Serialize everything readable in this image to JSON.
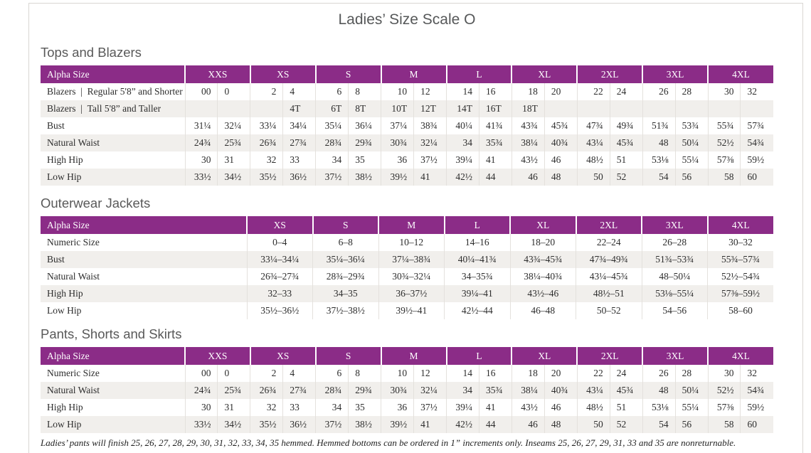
{
  "page": {
    "title": "Ladies’ Size Scale O",
    "footnote": "Ladies’ pants will finish 25, 26, 27, 28, 29, 30, 31, 32, 33, 34, 35 hemmed. Hemmed bottoms can be ordered in 1” increments only. Inseams 25, 26, 27, 29, 31, 33 and 35 are nonreturnable."
  },
  "colors": {
    "header_purple": "#8b2c87",
    "row_stripe": "#f1efec",
    "page_border": "#d9d6d3"
  },
  "tables": [
    {
      "section_title": "Tops and Blazers",
      "corner_label": "Alpha Size",
      "layout": "split",
      "columns": [
        "XXS",
        "XS",
        "S",
        "M",
        "L",
        "XL",
        "2XL",
        "3XL",
        "4XL"
      ],
      "rows": [
        {
          "label": "Blazers | Regular 5'8” and Shorter",
          "cells": [
            [
              "00",
              "0"
            ],
            [
              "2",
              "4"
            ],
            [
              "6",
              "8"
            ],
            [
              "10",
              "12"
            ],
            [
              "14",
              "16"
            ],
            [
              "18",
              "20"
            ],
            [
              "22",
              "24"
            ],
            [
              "26",
              "28"
            ],
            [
              "30",
              "32"
            ]
          ]
        },
        {
          "label": "Blazers | Tall 5'8” and Taller",
          "cells": [
            [
              "",
              ""
            ],
            [
              "",
              "4T"
            ],
            [
              "6T",
              "8T"
            ],
            [
              "10T",
              "12T"
            ],
            [
              "14T",
              "16T"
            ],
            [
              "18T",
              ""
            ],
            [
              "",
              ""
            ],
            [
              "",
              ""
            ],
            [
              "",
              ""
            ]
          ]
        },
        {
          "label": "Bust",
          "cells": [
            [
              "31¼",
              "32¼"
            ],
            [
              "33¼",
              "34¼"
            ],
            [
              "35¼",
              "36¼"
            ],
            [
              "37¼",
              "38¾"
            ],
            [
              "40¼",
              "41¾"
            ],
            [
              "43¾",
              "45¾"
            ],
            [
              "47¾",
              "49¾"
            ],
            [
              "51¾",
              "53¾"
            ],
            [
              "55¾",
              "57¾"
            ]
          ]
        },
        {
          "label": "Natural Waist",
          "cells": [
            [
              "24¾",
              "25¾"
            ],
            [
              "26¾",
              "27¾"
            ],
            [
              "28¾",
              "29¾"
            ],
            [
              "30¾",
              "32¼"
            ],
            [
              "34",
              "35¾"
            ],
            [
              "38¼",
              "40¾"
            ],
            [
              "43¼",
              "45¾"
            ],
            [
              "48",
              "50¼"
            ],
            [
              "52½",
              "54¾"
            ]
          ]
        },
        {
          "label": "High Hip",
          "cells": [
            [
              "30",
              "31"
            ],
            [
              "32",
              "33"
            ],
            [
              "34",
              "35"
            ],
            [
              "36",
              "37½"
            ],
            [
              "39¼",
              "41"
            ],
            [
              "43½",
              "46"
            ],
            [
              "48½",
              "51"
            ],
            [
              "53⅛",
              "55¼"
            ],
            [
              "57⅜",
              "59½"
            ]
          ]
        },
        {
          "label": "Low Hip",
          "cells": [
            [
              "33½",
              "34½"
            ],
            [
              "35½",
              "36½"
            ],
            [
              "37½",
              "38½"
            ],
            [
              "39½",
              "41"
            ],
            [
              "42½",
              "44"
            ],
            [
              "46",
              "48"
            ],
            [
              "50",
              "52"
            ],
            [
              "54",
              "56"
            ],
            [
              "58",
              "60"
            ]
          ]
        }
      ]
    },
    {
      "section_title": "Outerwear Jackets",
      "corner_label": "Alpha Size",
      "layout": "single",
      "columns": [
        "XS",
        "S",
        "M",
        "L",
        "XL",
        "2XL",
        "3XL",
        "4XL"
      ],
      "rows": [
        {
          "label": "Numeric Size",
          "cells": [
            "0–4",
            "6–8",
            "10–12",
            "14–16",
            "18–20",
            "22–24",
            "26–28",
            "30–32"
          ]
        },
        {
          "label": "Bust",
          "cells": [
            "33¼–34¼",
            "35¼–36¼",
            "37¼–38¾",
            "40¼–41¾",
            "43¾–45¾",
            "47¾–49¾",
            "51¾–53¾",
            "55¾–57¾"
          ]
        },
        {
          "label": "Natural Waist",
          "cells": [
            "26¾–27¾",
            "28¾–29¾",
            "30¾–32¼",
            "34–35¾",
            "38¼–40¾",
            "43¼–45¾",
            "48–50¼",
            "52½–54¾"
          ]
        },
        {
          "label": "High Hip",
          "cells": [
            "32–33",
            "34–35",
            "36–37½",
            "39¼–41",
            "43½–46",
            "48½–51",
            "53⅛–55¼",
            "57⅜–59½"
          ]
        },
        {
          "label": "Low Hip",
          "cells": [
            "35½–36½",
            "37½–38½",
            "39½–41",
            "42½–44",
            "46–48",
            "50–52",
            "54–56",
            "58–60"
          ]
        }
      ]
    },
    {
      "section_title": "Pants, Shorts and Skirts",
      "corner_label": "Alpha Size",
      "layout": "split",
      "columns": [
        "XXS",
        "XS",
        "S",
        "M",
        "L",
        "XL",
        "2XL",
        "3XL",
        "4XL"
      ],
      "rows": [
        {
          "label": "Numeric Size",
          "cells": [
            [
              "00",
              "0"
            ],
            [
              "2",
              "4"
            ],
            [
              "6",
              "8"
            ],
            [
              "10",
              "12"
            ],
            [
              "14",
              "16"
            ],
            [
              "18",
              "20"
            ],
            [
              "22",
              "24"
            ],
            [
              "26",
              "28"
            ],
            [
              "30",
              "32"
            ]
          ]
        },
        {
          "label": "Natural Waist",
          "cells": [
            [
              "24¾",
              "25¾"
            ],
            [
              "26¾",
              "27¾"
            ],
            [
              "28¾",
              "29¾"
            ],
            [
              "30¾",
              "32¼"
            ],
            [
              "34",
              "35¾"
            ],
            [
              "38¼",
              "40¾"
            ],
            [
              "43¼",
              "45¾"
            ],
            [
              "48",
              "50¼"
            ],
            [
              "52½",
              "54¾"
            ]
          ]
        },
        {
          "label": "High Hip",
          "cells": [
            [
              "30",
              "31"
            ],
            [
              "32",
              "33"
            ],
            [
              "34",
              "35"
            ],
            [
              "36",
              "37½"
            ],
            [
              "39¼",
              "41"
            ],
            [
              "43½",
              "46"
            ],
            [
              "48½",
              "51"
            ],
            [
              "53⅛",
              "55¼"
            ],
            [
              "57⅜",
              "59½"
            ]
          ]
        },
        {
          "label": "Low Hip",
          "cells": [
            [
              "33½",
              "34½"
            ],
            [
              "35½",
              "36½"
            ],
            [
              "37½",
              "38½"
            ],
            [
              "39½",
              "41"
            ],
            [
              "42½",
              "44"
            ],
            [
              "46",
              "48"
            ],
            [
              "50",
              "52"
            ],
            [
              "54",
              "56"
            ],
            [
              "58",
              "60"
            ]
          ]
        }
      ]
    }
  ]
}
